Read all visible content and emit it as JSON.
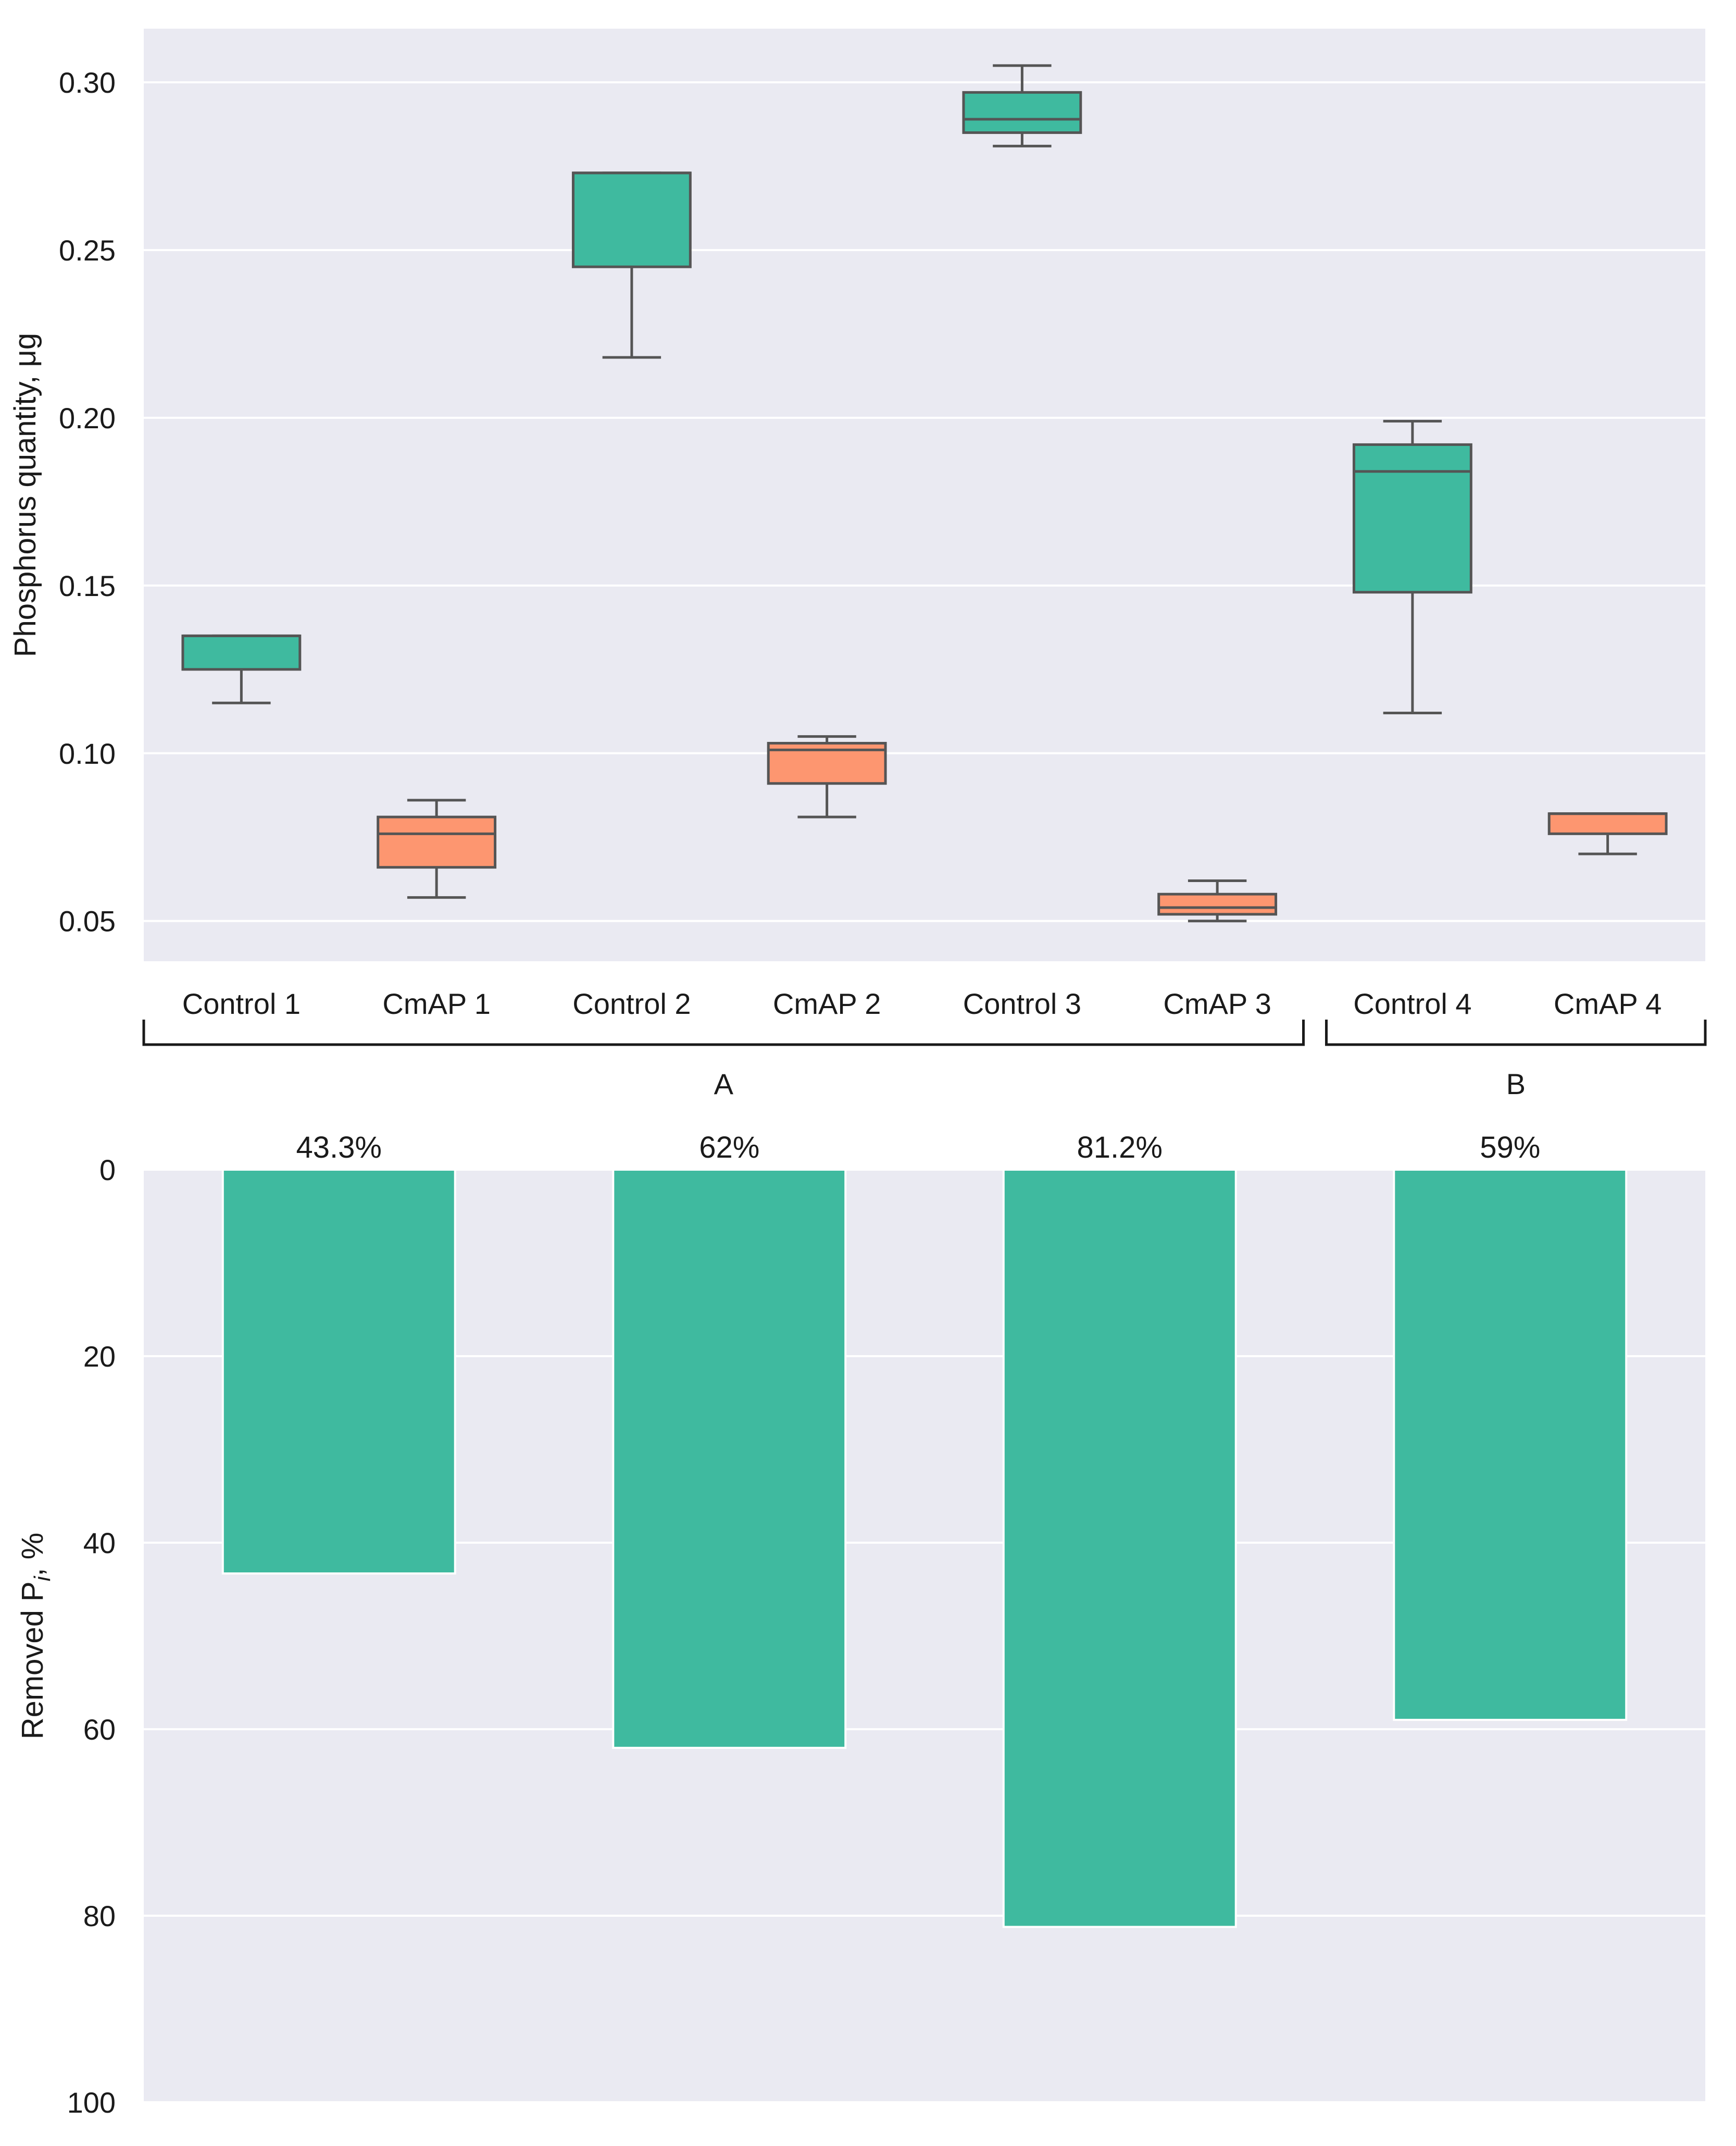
{
  "chart_data": [
    {
      "type": "box",
      "ylabel": "Phosphorus quantity, μg",
      "ylim": [
        0.038,
        0.316
      ],
      "yticks": [
        0.05,
        0.1,
        0.15,
        0.2,
        0.25,
        0.3
      ],
      "ytick_labels": [
        "0.05",
        "0.10",
        "0.15",
        "0.20",
        "0.25",
        "0.30"
      ],
      "grid": true,
      "categories": [
        "Control 1",
        "CmAP 1",
        "Control 2",
        "CmAP 2",
        "Control 3",
        "CmAP 3",
        "Control 4",
        "CmAP 4"
      ],
      "boxes": [
        {
          "label": "Control 1",
          "kind": "control",
          "whislo": 0.115,
          "q1": 0.125,
          "med": 0.135,
          "q3": 0.135,
          "whishi": 0.135
        },
        {
          "label": "CmAP 1",
          "kind": "cmap",
          "whislo": 0.057,
          "q1": 0.066,
          "med": 0.076,
          "q3": 0.081,
          "whishi": 0.086
        },
        {
          "label": "Control 2",
          "kind": "control",
          "whislo": 0.218,
          "q1": 0.245,
          "med": 0.273,
          "q3": 0.273,
          "whishi": 0.273
        },
        {
          "label": "CmAP 2",
          "kind": "cmap",
          "whislo": 0.081,
          "q1": 0.091,
          "med": 0.101,
          "q3": 0.103,
          "whishi": 0.105
        },
        {
          "label": "Control 3",
          "kind": "control",
          "whislo": 0.281,
          "q1": 0.285,
          "med": 0.289,
          "q3": 0.297,
          "whishi": 0.305
        },
        {
          "label": "CmAP 3",
          "kind": "cmap",
          "whislo": 0.05,
          "q1": 0.052,
          "med": 0.054,
          "q3": 0.058,
          "whishi": 0.062
        },
        {
          "label": "Control 4",
          "kind": "control",
          "whislo": 0.112,
          "q1": 0.148,
          "med": 0.184,
          "q3": 0.192,
          "whishi": 0.199
        },
        {
          "label": "CmAP 4",
          "kind": "cmap",
          "whislo": 0.07,
          "q1": 0.076,
          "med": 0.082,
          "q3": 0.082,
          "whishi": 0.082
        }
      ],
      "groups": [
        {
          "label": "A",
          "from": 0,
          "to": 5
        },
        {
          "label": "B",
          "from": 6,
          "to": 7
        }
      ],
      "colors": {
        "control": "#3fba9f",
        "cmap": "#fd9670",
        "edge": "#555555",
        "background": "#eaeaf2",
        "grid": "#ffffff"
      }
    },
    {
      "type": "bar",
      "orientation": "inverted-y",
      "ylabel_main": "Removed P",
      "ylabel_sub": "i",
      "ylabel_tail": ", %",
      "ylim": [
        0,
        100
      ],
      "yticks": [
        0,
        20,
        40,
        60,
        80,
        100
      ],
      "ytick_labels": [
        "0",
        "20",
        "40",
        "60",
        "80",
        "100"
      ],
      "grid": true,
      "values": [
        43.3,
        62,
        81.2,
        59
      ],
      "value_labels": [
        "43.3%",
        "62%",
        "81.2%",
        "59%"
      ],
      "colors": {
        "bar": "#3fba9f",
        "background": "#eaeaf2",
        "grid": "#ffffff"
      }
    }
  ]
}
